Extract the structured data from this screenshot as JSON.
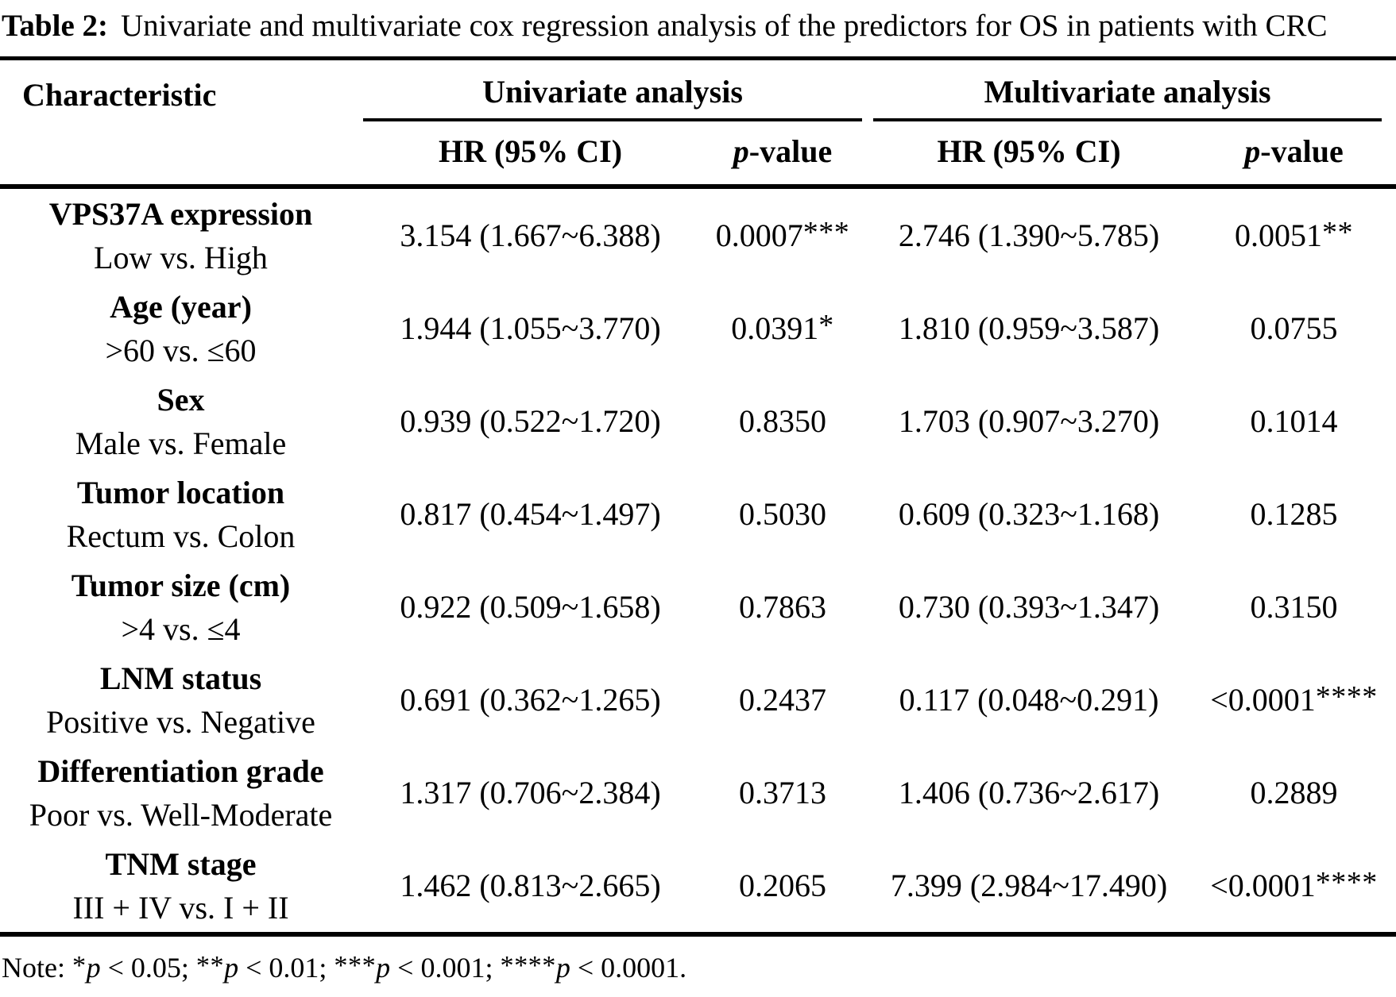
{
  "title": {
    "label": "Table 2:",
    "text": "Univariate and multivariate cox regression analysis of the predictors for OS in patients with CRC"
  },
  "header": {
    "characteristic": "Characteristic",
    "univariate": "Univariate analysis",
    "multivariate": "Multivariate analysis",
    "hr": "HR (95% CI)",
    "p_italic": "p",
    "p_suffix": "-value"
  },
  "rows": [
    {
      "name": "VPS37A expression",
      "comparison": "Low vs. High",
      "uni_hr": "3.154 (1.667~6.388)",
      "uni_p": "0.0007",
      "uni_p_stars": "***",
      "multi_hr": "2.746 (1.390~5.785)",
      "multi_p": "0.0051",
      "multi_p_stars": "**"
    },
    {
      "name": "Age (year)",
      "comparison": ">60 vs. ≤60",
      "uni_hr": "1.944 (1.055~3.770)",
      "uni_p": "0.0391",
      "uni_p_stars": "*",
      "multi_hr": "1.810 (0.959~3.587)",
      "multi_p": "0.0755",
      "multi_p_stars": ""
    },
    {
      "name": "Sex",
      "comparison": "Male vs. Female",
      "uni_hr": "0.939 (0.522~1.720)",
      "uni_p": "0.8350",
      "uni_p_stars": "",
      "multi_hr": "1.703 (0.907~3.270)",
      "multi_p": "0.1014",
      "multi_p_stars": ""
    },
    {
      "name": "Tumor location",
      "comparison": "Rectum vs. Colon",
      "uni_hr": "0.817 (0.454~1.497)",
      "uni_p": "0.5030",
      "uni_p_stars": "",
      "multi_hr": "0.609 (0.323~1.168)",
      "multi_p": "0.1285",
      "multi_p_stars": ""
    },
    {
      "name": "Tumor size (cm)",
      "comparison": ">4 vs. ≤4",
      "uni_hr": "0.922 (0.509~1.658)",
      "uni_p": "0.7863",
      "uni_p_stars": "",
      "multi_hr": "0.730 (0.393~1.347)",
      "multi_p": "0.3150",
      "multi_p_stars": ""
    },
    {
      "name": "LNM status",
      "comparison": "Positive vs. Negative",
      "uni_hr": "0.691 (0.362~1.265)",
      "uni_p": "0.2437",
      "uni_p_stars": "",
      "multi_hr": "0.117 (0.048~0.291)",
      "multi_p": "<0.0001",
      "multi_p_stars": "****"
    },
    {
      "name": "Differentiation grade",
      "comparison": "Poor vs. Well-Moderate",
      "uni_hr": "1.317 (0.706~2.384)",
      "uni_p": "0.3713",
      "uni_p_stars": "",
      "multi_hr": "1.406 (0.736~2.617)",
      "multi_p": "0.2889",
      "multi_p_stars": ""
    },
    {
      "name": "TNM stage",
      "comparison": "III + IV vs. I + II",
      "uni_hr": "1.462 (0.813~2.665)",
      "uni_p": "0.2065",
      "uni_p_stars": "",
      "multi_hr": "7.399 (2.984~17.490)",
      "multi_p": "<0.0001",
      "multi_p_stars": "****"
    }
  ],
  "note": {
    "prefix": "Note: ",
    "segments": [
      {
        "stars": "*",
        "p": "p",
        "rest": " < 0.05; "
      },
      {
        "stars": "**",
        "p": "p",
        "rest": " < 0.01; "
      },
      {
        "stars": "***",
        "p": "p",
        "rest": " < 0.001; "
      },
      {
        "stars": "****",
        "p": "p",
        "rest": " < 0.0001."
      }
    ]
  },
  "colors": {
    "text": "#000000",
    "background": "#ffffff",
    "rule": "#000000"
  }
}
